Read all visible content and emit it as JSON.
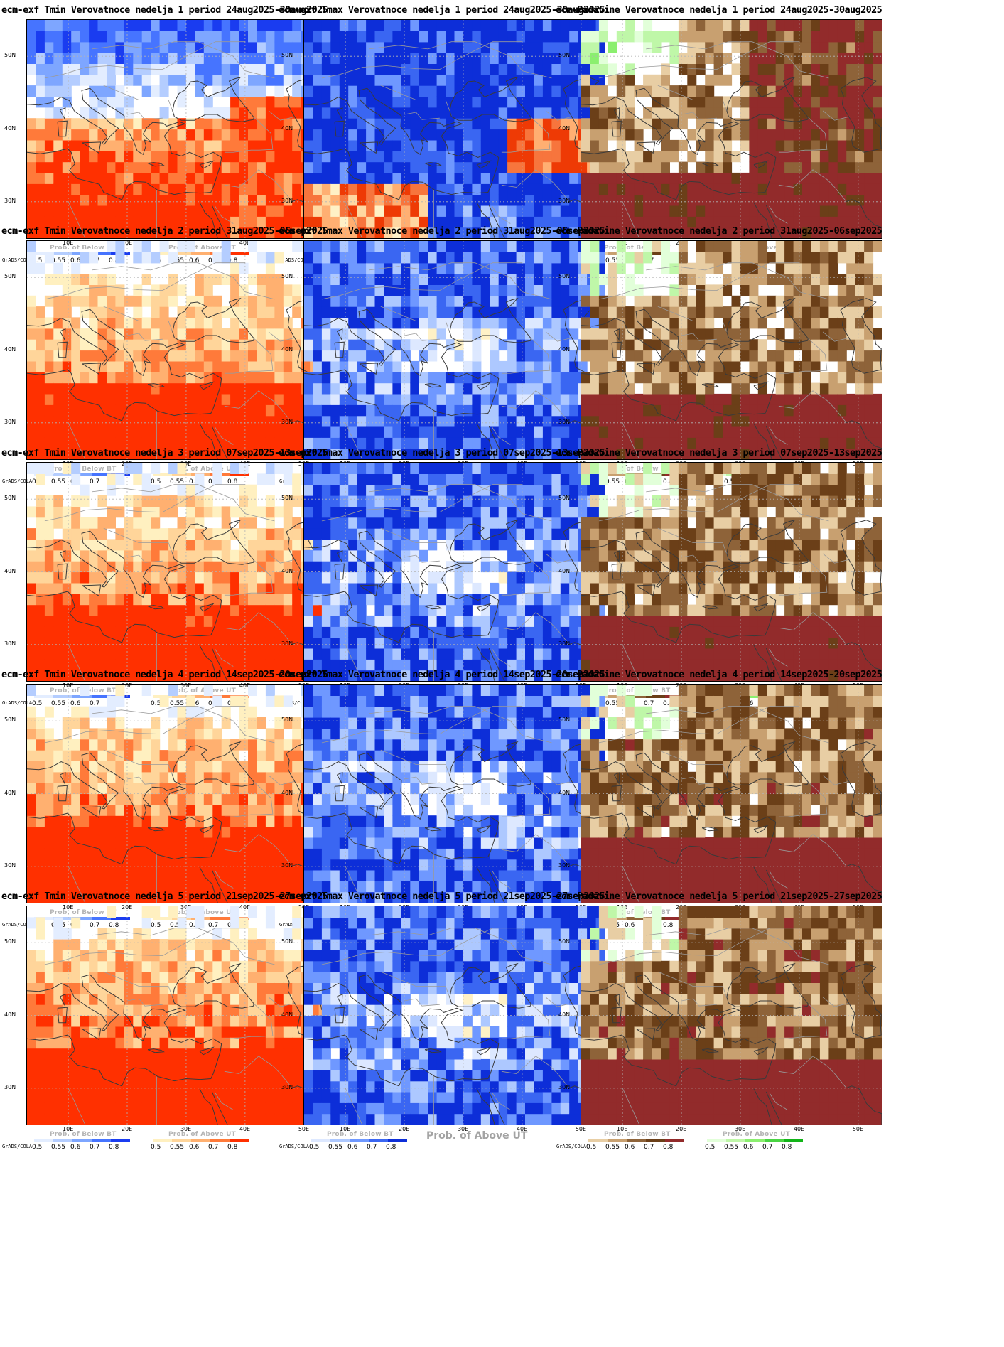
{
  "panels": [
    {
      "title": "ecm-exf Tmin Verovatnoce nedelja 1 period 24aug2025-30aug2025",
      "var": "tmin",
      "week": 1
    },
    {
      "title": "ecm-exf Tmax Verovatnoce nedelja 1 period 24aug2025-30aug2025",
      "var": "tmax",
      "week": 1
    },
    {
      "title": "ecm-Padavine Verovatnoce nedelja 1 period 24aug2025-30aug2025",
      "var": "precip",
      "week": 1
    },
    {
      "title": "ecm-exf Tmin Verovatnoce nedelja 2 period 31aug2025-06sep2025",
      "var": "tmin",
      "week": 2
    },
    {
      "title": "ecm-exf Tmax Verovatnoce nedelja 2 period 31aug2025-06sep2025",
      "var": "tmax",
      "week": 2
    },
    {
      "title": "ecm-Padavine Verovatnoce nedelja 2 period 31aug2025-06sep2025",
      "var": "precip",
      "week": 2
    },
    {
      "title": "ecm-exf Tmin Verovatnoce nedelja 3 period 07sep2025-13sep2025",
      "var": "tmin",
      "week": 3
    },
    {
      "title": "ecm-exf Tmax Verovatnoce nedelja 3 period 07sep2025-13sep2025",
      "var": "tmax",
      "week": 3,
      "watermark": "Prob. of Above UT"
    },
    {
      "title": "ecm-Padavine Verovatnoce nedelja 3 period 07sep2025-13sep2025",
      "var": "precip",
      "week": 3
    },
    {
      "title": "ecm-exf Tmin Verovatnoce nedelja 4 period 14sep2025-20sep2025",
      "var": "tmin",
      "week": 4
    },
    {
      "title": "ecm-exf Tmax Verovatnoce nedelja 4 period 14sep2025-20sep2025",
      "var": "tmax",
      "week": 4,
      "watermark": "Prob. of Above UT"
    },
    {
      "title": "ecm-Padavine Verovatnoce nedelja 4 period 14sep2025-20sep2025",
      "var": "precip",
      "week": 4
    },
    {
      "title": "ecm-exf Tmin Verovatnoce nedelja 5 period 21sep2025-27sep2025",
      "var": "tmin",
      "week": 5
    },
    {
      "title": "ecm-exf Tmax Verovatnoce nedelja 5 period 21sep2025-27sep2025",
      "var": "tmax",
      "week": 5,
      "watermark": "Prob. of Above UT"
    },
    {
      "title": "ecm-Padavine Verovatnoce nedelja 5 period 21sep2025-27sep2025",
      "var": "precip",
      "week": 5
    }
  ],
  "axes": {
    "lat_labels": [
      "50N",
      "40N",
      "30N"
    ],
    "lon_labels": [
      "10E",
      "20E",
      "30E",
      "40E",
      "50E"
    ]
  },
  "legend": {
    "credit": "GrADS/COLA",
    "below_title": "Prob. of Below BT",
    "above_title": "Prob. of Above UT",
    "ticks": [
      "0.5",
      "0.55",
      "0.6",
      "0.7",
      "0.8"
    ],
    "colors": {
      "tmin_below": [
        "#e3edff",
        "#b4cdff",
        "#7ea6ff",
        "#4674ff",
        "#1a3cf0"
      ],
      "tmin_above": [
        "#fff0c0",
        "#ffd59a",
        "#ffb070",
        "#ff7a3a",
        "#ff3000"
      ],
      "tmax_below": [
        "#dde8ff",
        "#adc8ff",
        "#6f98ff",
        "#3a66f2",
        "#0d2ed8"
      ],
      "tmax_above": [
        "#fff1c6",
        "#ffd7a1",
        "#ffaf72",
        "#f7753d",
        "#ee3a05"
      ],
      "precip_below": [
        "#e8cea4",
        "#c8a070",
        "#8e6339",
        "#6b3f18",
        "#922b2b"
      ],
      "precip_above": [
        "#e2ffd9",
        "#bff7a8",
        "#8bef6f",
        "#49d442",
        "#12b418"
      ]
    }
  }
}
